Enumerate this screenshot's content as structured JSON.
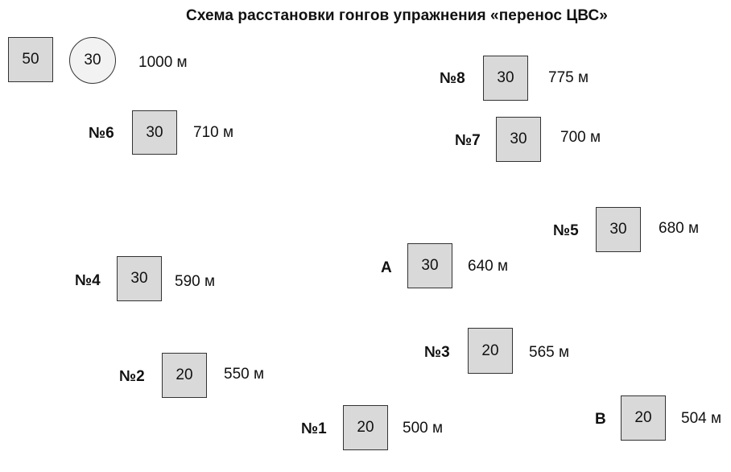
{
  "title": "Схема расстановки гонгов упражнения «перенос ЦВС»",
  "colors": {
    "box_fill": "#d9d9d9",
    "circle_fill": "#f2f2f2",
    "border": "#333333"
  },
  "targets": {
    "start": {
      "box": "50",
      "circle": "30",
      "distance": "1000 м"
    },
    "n6": {
      "label": "№6",
      "size": "30",
      "distance": "710 м"
    },
    "n8": {
      "label": "№8",
      "size": "30",
      "distance": "775 м"
    },
    "n7": {
      "label": "№7",
      "size": "30",
      "distance": "700 м"
    },
    "n5": {
      "label": "№5",
      "size": "30",
      "distance": "680 м"
    },
    "n4": {
      "label": "№4",
      "size": "30",
      "distance": "590 м"
    },
    "a": {
      "label": "A",
      "size": "30",
      "distance": "640 м"
    },
    "n3": {
      "label": "№3",
      "size": "20",
      "distance": "565 м"
    },
    "n2": {
      "label": "№2",
      "size": "20",
      "distance": "550 м"
    },
    "n1": {
      "label": "№1",
      "size": "20",
      "distance": "500 м"
    },
    "b": {
      "label": "B",
      "size": "20",
      "distance": "504 м"
    }
  }
}
